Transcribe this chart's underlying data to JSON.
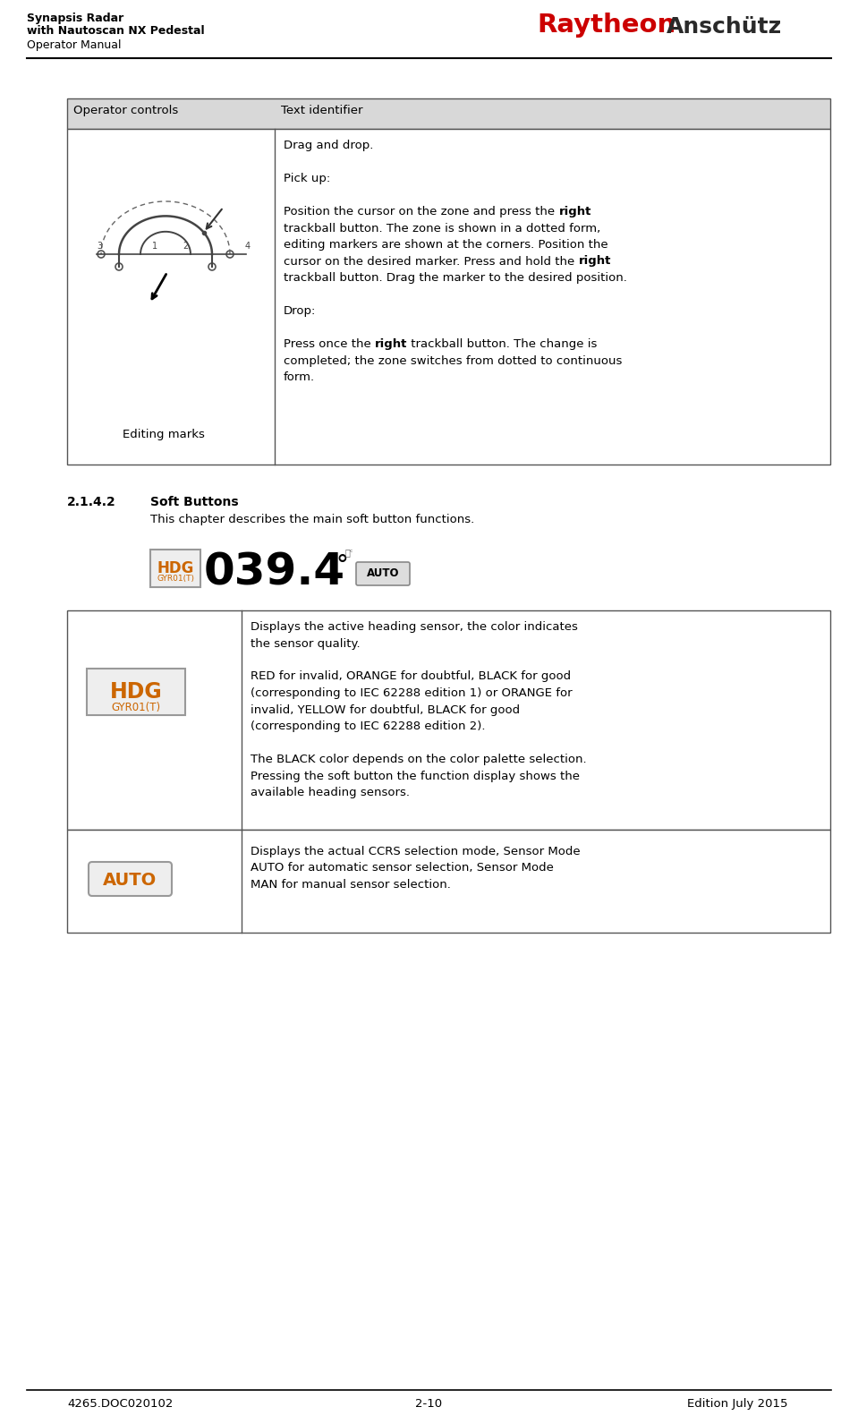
{
  "page_bg": "#ffffff",
  "header_left": [
    "Synapsis Radar",
    "with Nautoscan NX Pedestal",
    "Operator Manual"
  ],
  "header_right_red": "Raytheon",
  "header_right_black": "Anschütz",
  "footer_left": "4265.DOC020102",
  "footer_center": "2-10",
  "footer_right": "Edition July 2015",
  "section_label": "2.1.4.2",
  "section_title": "Soft Buttons",
  "section_subtitle": "This chapter describes the main soft button functions.",
  "table1_header_col1": "Operator controls",
  "table1_header_col2": "Text identifier",
  "table1_cell1_label": "Editing marks",
  "table2_row1_col2_lines": [
    "Displays the active heading sensor, the color indicates",
    "the sensor quality.",
    "",
    "RED for invalid, ORANGE for doubtful, BLACK for good",
    "(corresponding to IEC 62288 edition 1) or ORANGE for",
    "invalid, YELLOW for doubtful, BLACK for good",
    "(corresponding to IEC 62288 edition 2).",
    "",
    "The BLACK color depends on the color palette selection.",
    "Pressing the soft button the function display shows the",
    "available heading sensors."
  ],
  "table2_row2_col2_lines": [
    "Displays the actual CCRS selection mode, Sensor Mode",
    "AUTO for automatic sensor selection, Sensor Mode",
    "MAN for manual sensor selection."
  ],
  "table1_cell2_lines": [
    {
      "text": "Drag and drop.",
      "bold": false
    },
    {
      "text": "",
      "bold": false
    },
    {
      "text": "Pick up:",
      "bold": false
    },
    {
      "text": "",
      "bold": false
    },
    {
      "text": "Position the cursor on the zone and press the [right]",
      "bold": false,
      "bold_word": "right"
    },
    {
      "text": "trackball button. The zone is shown in a dotted form,",
      "bold": false
    },
    {
      "text": "editing markers are shown at the corners. Position the",
      "bold": false
    },
    {
      "text": "cursor on the desired marker. Press and hold the [right]",
      "bold": false,
      "bold_word": "right"
    },
    {
      "text": "trackball button. Drag the marker to the desired position.",
      "bold": false
    },
    {
      "text": "",
      "bold": false
    },
    {
      "text": "Drop:",
      "bold": false
    },
    {
      "text": "",
      "bold": false
    },
    {
      "text": "Press once the [right] trackball button. The change is",
      "bold": false,
      "bold_word": "right"
    },
    {
      "text": "completed; the zone switches from dotted to continuous",
      "bold": false
    },
    {
      "text": "form.",
      "bold": false
    }
  ],
  "colors": {
    "table_border": "#555555",
    "table_header_bg": "#d8d8d8",
    "orange": "#cc6600",
    "dark_text": "#222222"
  }
}
